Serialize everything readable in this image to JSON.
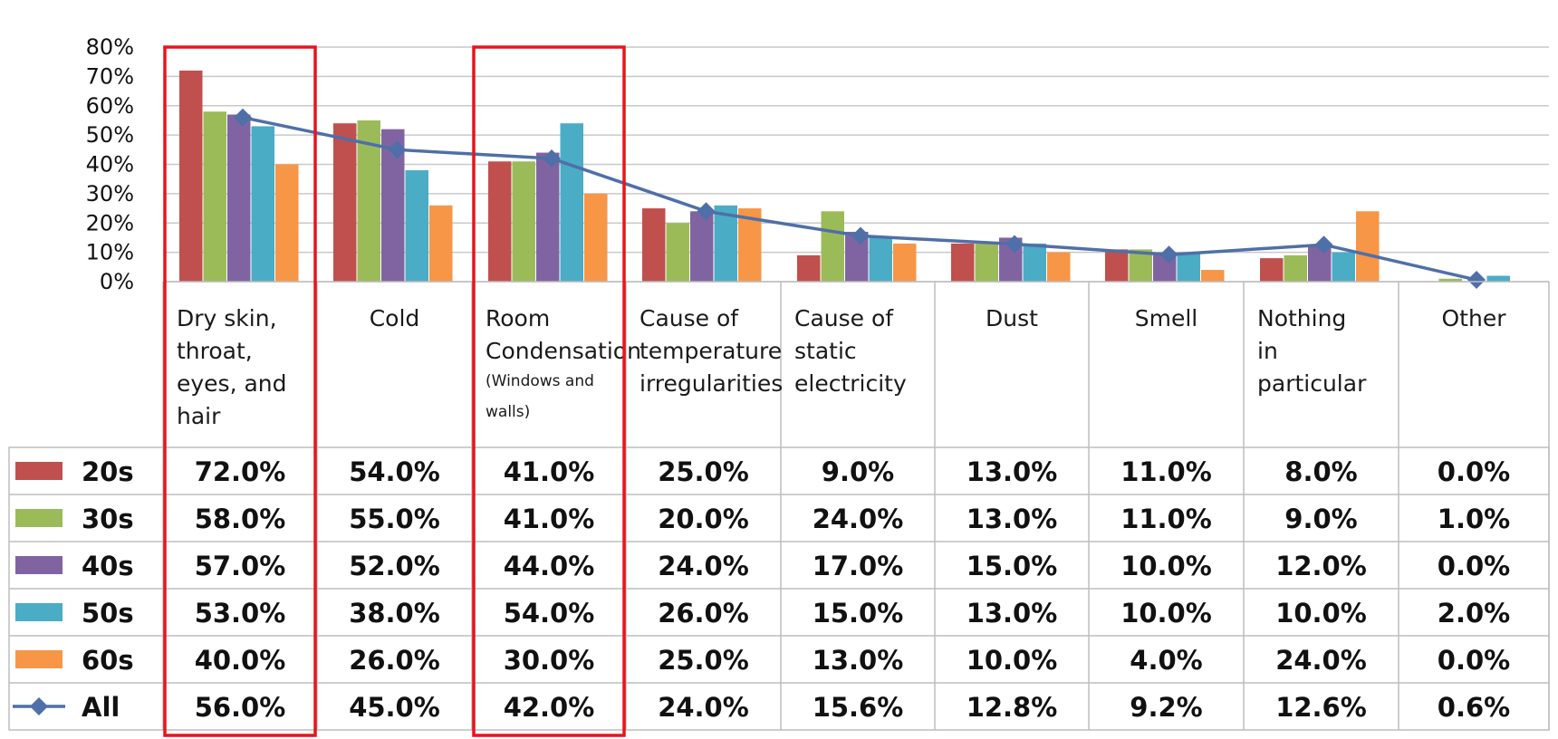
{
  "chart_data": {
    "type": "bar",
    "title": "",
    "xlabel": "",
    "ylabel": "",
    "ylim": [
      0,
      80
    ],
    "yticks": [
      "80%",
      "70%",
      "60%",
      "50%",
      "40%",
      "30%",
      "20%",
      "10%",
      "0%"
    ],
    "categories": [
      {
        "lines": [
          "Dry skin,",
          "throat,",
          "eyes, and",
          "hair"
        ],
        "small_lines": [],
        "highlighted": true
      },
      {
        "lines": [
          "Cold"
        ],
        "small_lines": [],
        "highlighted": false
      },
      {
        "lines": [
          "Room",
          "Condensation"
        ],
        "small_lines": [
          "(Windows and",
          "walls)"
        ],
        "highlighted": true
      },
      {
        "lines": [
          "Cause of",
          "temperature",
          "irregularities"
        ],
        "small_lines": [],
        "highlighted": false
      },
      {
        "lines": [
          "Cause of",
          "static",
          "electricity"
        ],
        "small_lines": [],
        "highlighted": false
      },
      {
        "lines": [
          "Dust"
        ],
        "small_lines": [],
        "highlighted": false
      },
      {
        "lines": [
          "Smell"
        ],
        "small_lines": [],
        "highlighted": false
      },
      {
        "lines": [
          "Nothing",
          "in",
          "particular"
        ],
        "small_lines": [],
        "highlighted": false
      },
      {
        "lines": [
          "Other"
        ],
        "small_lines": [],
        "highlighted": false
      }
    ],
    "series": [
      {
        "name": "20s",
        "kind": "bar",
        "color": "#c0504d",
        "values": [
          72,
          54,
          41,
          25,
          9,
          13,
          11,
          8,
          0
        ],
        "labels": [
          "72.0%",
          "54.0%",
          "41.0%",
          "25.0%",
          "9.0%",
          "13.0%",
          "11.0%",
          "8.0%",
          "0.0%"
        ]
      },
      {
        "name": "30s",
        "kind": "bar",
        "color": "#9bbb59",
        "values": [
          58,
          55,
          41,
          20,
          24,
          13,
          11,
          9,
          1
        ],
        "labels": [
          "58.0%",
          "55.0%",
          "41.0%",
          "20.0%",
          "24.0%",
          "13.0%",
          "11.0%",
          "9.0%",
          "1.0%"
        ]
      },
      {
        "name": "40s",
        "kind": "bar",
        "color": "#8064a2",
        "values": [
          57,
          52,
          44,
          24,
          17,
          15,
          10,
          12,
          0
        ],
        "labels": [
          "57.0%",
          "52.0%",
          "44.0%",
          "24.0%",
          "17.0%",
          "15.0%",
          "10.0%",
          "12.0%",
          "0.0%"
        ]
      },
      {
        "name": "50s",
        "kind": "bar",
        "color": "#4bacc6",
        "values": [
          53,
          38,
          54,
          26,
          15,
          13,
          10,
          10,
          2
        ],
        "labels": [
          "53.0%",
          "38.0%",
          "54.0%",
          "26.0%",
          "15.0%",
          "13.0%",
          "10.0%",
          "10.0%",
          "2.0%"
        ]
      },
      {
        "name": "60s",
        "kind": "bar",
        "color": "#f79646",
        "values": [
          40,
          26,
          30,
          25,
          13,
          10,
          4,
          24,
          0
        ],
        "labels": [
          "40.0%",
          "26.0%",
          "30.0%",
          "25.0%",
          "13.0%",
          "10.0%",
          "4.0%",
          "24.0%",
          "0.0%"
        ]
      },
      {
        "name": "All",
        "kind": "line",
        "color": "#4f6fa8",
        "values": [
          56,
          45,
          42,
          24,
          15.6,
          12.8,
          9.2,
          12.6,
          0.6
        ],
        "labels": [
          "56.0%",
          "45.0%",
          "42.0%",
          "24.0%",
          "15.6%",
          "12.8%",
          "9.2%",
          "12.6%",
          "0.6%"
        ]
      }
    ],
    "highlight_color": "#e8141c",
    "grid": true,
    "legend": "data-table-left"
  }
}
